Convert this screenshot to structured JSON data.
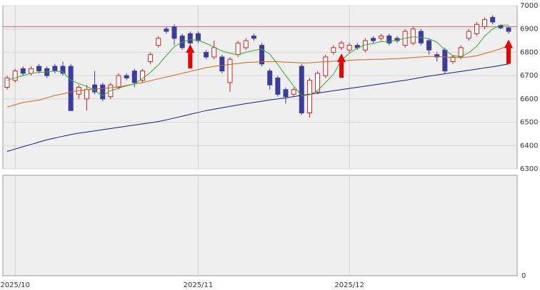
{
  "chart_data": {
    "type": "candlestick",
    "categories": [
      null,
      "2025/10",
      null,
      null,
      null,
      null,
      null,
      null,
      null,
      null,
      null,
      null,
      null,
      null,
      null,
      null,
      null,
      null,
      null,
      null,
      null,
      null,
      null,
      null,
      "2025/11",
      null,
      null,
      null,
      null,
      null,
      null,
      null,
      null,
      null,
      null,
      null,
      null,
      null,
      null,
      null,
      null,
      null,
      null,
      "2025/12",
      null,
      null,
      null,
      null,
      null,
      null,
      null,
      null,
      null,
      null,
      null,
      null,
      null,
      null,
      null,
      null,
      null,
      null,
      null,
      null
    ],
    "open": [
      6650,
      6680,
      6730,
      6710,
      6740,
      6730,
      6740,
      6740,
      6740,
      6620,
      6600,
      6660,
      6660,
      6610,
      6650,
      6700,
      6720,
      6680,
      6760,
      6830,
      6900,
      6910,
      6870,
      6880,
      6880,
      6800,
      6780,
      6780,
      6670,
      6790,
      6820,
      6870,
      6830,
      6720,
      6690,
      6640,
      6620,
      6740,
      6540,
      6630,
      6700,
      6800,
      6820,
      6810,
      6830,
      6810,
      6860,
      6860,
      6870,
      6860,
      6830,
      6840,
      6890,
      6850,
      6790,
      6810,
      6760,
      6780,
      6860,
      6880,
      6910,
      6950,
      6915,
      6905
    ],
    "high": [
      6700,
      6730,
      6740,
      6740,
      6750,
      6740,
      6750,
      6760,
      6750,
      6660,
      6660,
      6720,
      6670,
      6670,
      6710,
      6710,
      6730,
      6730,
      6800,
      6870,
      6910,
      6920,
      6880,
      6890,
      6890,
      6810,
      6850,
      6790,
      6780,
      6850,
      6860,
      6880,
      6840,
      6730,
      6700,
      6650,
      6650,
      6750,
      6690,
      6720,
      6790,
      6830,
      6850,
      6840,
      6840,
      6860,
      6870,
      6880,
      6880,
      6870,
      6900,
      6910,
      6900,
      6860,
      6800,
      6820,
      6790,
      6830,
      6900,
      6930,
      6950,
      6960,
      6920,
      6910
    ],
    "low": [
      6640,
      6670,
      6700,
      6700,
      6710,
      6690,
      6710,
      6700,
      6550,
      6600,
      6550,
      6620,
      6590,
      6600,
      6640,
      6680,
      6650,
      6670,
      6750,
      6820,
      6880,
      6830,
      6810,
      6830,
      6840,
      6770,
      6770,
      6710,
      6630,
      6780,
      6810,
      6850,
      6740,
      6640,
      6610,
      6580,
      6610,
      6530,
      6520,
      6620,
      6690,
      6790,
      6810,
      6800,
      6810,
      6800,
      6840,
      6850,
      6830,
      6840,
      6820,
      6830,
      6830,
      6790,
      6760,
      6710,
      6750,
      6770,
      6850,
      6870,
      6900,
      6920,
      6900,
      6880
    ],
    "close": [
      6690,
      6720,
      6710,
      6730,
      6720,
      6700,
      6720,
      6710,
      6550,
      6650,
      6640,
      6630,
      6600,
      6660,
      6700,
      6690,
      6670,
      6720,
      6790,
      6860,
      6890,
      6860,
      6820,
      6840,
      6850,
      6780,
      6820,
      6720,
      6770,
      6840,
      6850,
      6860,
      6750,
      6660,
      6620,
      6610,
      6640,
      6540,
      6680,
      6710,
      6780,
      6820,
      6840,
      6830,
      6820,
      6850,
      6850,
      6870,
      6840,
      6850,
      6890,
      6900,
      6840,
      6810,
      6780,
      6720,
      6780,
      6820,
      6890,
      6920,
      6940,
      6930,
      6905,
      6890
    ],
    "up_color": "#d42020",
    "down_color": "#3c3c9c",
    "series": [
      {
        "color": "#1a1a80",
        "values": [
          6375,
          6385,
          6395,
          6405,
          6415,
          6425,
          6432,
          6440,
          6447,
          6453,
          6458,
          6463,
          6468,
          6473,
          6478,
          6483,
          6488,
          6493,
          6498,
          6503,
          6510,
          6518,
          6526,
          6534,
          6542,
          6550,
          6556,
          6562,
          6568,
          6574,
          6580,
          6585,
          6590,
          6596,
          6600,
          6605,
          6610,
          6615,
          6620,
          6625,
          6630,
          6635,
          6640,
          6645,
          6650,
          6655,
          6660,
          6665,
          6670,
          6675,
          6680,
          6686,
          6692,
          6698,
          6703,
          6708,
          6713,
          6718,
          6723,
          6728,
          6733,
          6738,
          6744,
          6750
        ]
      },
      {
        "color": "#e06010",
        "values": [
          6565,
          6575,
          6585,
          6590,
          6595,
          6605,
          6615,
          6622,
          6630,
          6635,
          6640,
          6642,
          6645,
          6648,
          6652,
          6658,
          6664,
          6670,
          6678,
          6686,
          6694,
          6702,
          6710,
          6718,
          6726,
          6734,
          6740,
          6744,
          6748,
          6752,
          6756,
          6758,
          6760,
          6760,
          6760,
          6758,
          6756,
          6755,
          6755,
          6758,
          6760,
          6762,
          6764,
          6766,
          6768,
          6768,
          6770,
          6770,
          6772,
          6773,
          6775,
          6778,
          6780,
          6782,
          6782,
          6780,
          6778,
          6778,
          6780,
          6785,
          6795,
          6805,
          6815,
          6830
        ]
      },
      {
        "color": "#30b030",
        "values": [
          6680,
          6690,
          6700,
          6710,
          6714,
          6716,
          6720,
          6716,
          6680,
          6666,
          6654,
          6636,
          6614,
          6636,
          6646,
          6656,
          6664,
          6688,
          6714,
          6746,
          6786,
          6824,
          6844,
          6854,
          6852,
          6838,
          6822,
          6806,
          6796,
          6790,
          6800,
          6808,
          6814,
          6792,
          6748,
          6700,
          6656,
          6614,
          6618,
          6636,
          6670,
          6706,
          6766,
          6796,
          6818,
          6832,
          6838,
          6846,
          6846,
          6852,
          6860,
          6866,
          6864,
          6858,
          6844,
          6810,
          6786,
          6782,
          6798,
          6826,
          6870,
          6900,
          6917,
          6917
        ]
      }
    ],
    "reference_line": {
      "value": 6910,
      "color": "#e05050"
    },
    "signals": [
      23,
      42,
      63
    ],
    "signal_color": "#ee0000",
    "ylim": [
      6300,
      7000
    ],
    "yticks": [
      6300,
      6400,
      6500,
      6600,
      6700,
      6800,
      6900,
      7000
    ],
    "grid": true,
    "lower_panel": {
      "yticks": [
        0
      ]
    }
  }
}
